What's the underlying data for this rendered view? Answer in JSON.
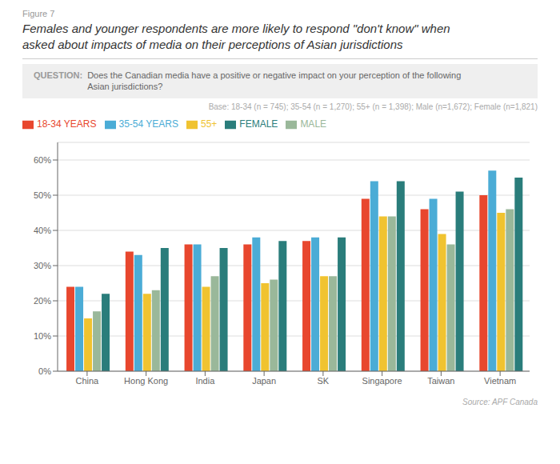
{
  "chart_data": {
    "type": "bar",
    "title": "Females and younger respondents are more likely to respond \"don't know\" when\nasked about impacts of media on their perceptions of Asian jurisdictions",
    "annotations": [
      "Figure 7",
      "QUESTION:",
      "Does the Canadian media have a positive or negative impact on your perception of the following\nAsian jurisdictions?",
      "Base: 18-34 (n = 745); 35-54 (n = 1,270); 55+ (n = 1,398); Male (n=1,672); Female (n=1,821)",
      "Source: APF Canada"
    ],
    "categories": [
      "China",
      "Hong Kong",
      "India",
      "Japan",
      "SK",
      "Singapore",
      "Taiwan",
      "Vietnam"
    ],
    "series": [
      {
        "name": "18-34 YEARS",
        "color": "#e8472e",
        "values": [
          0.24,
          0.34,
          0.36,
          0.36,
          0.37,
          0.49,
          0.46,
          0.5
        ]
      },
      {
        "name": "35-54 YEARS",
        "color": "#4bacd6",
        "values": [
          0.24,
          0.33,
          0.36,
          0.38,
          0.38,
          0.54,
          0.49,
          0.57
        ]
      },
      {
        "name": "55+",
        "color": "#f0c330",
        "values": [
          0.15,
          0.22,
          0.24,
          0.25,
          0.27,
          0.44,
          0.39,
          0.45
        ]
      },
      {
        "name": "MALE",
        "color": "#9ab89a",
        "values": [
          0.17,
          0.23,
          0.27,
          0.26,
          0.27,
          0.44,
          0.36,
          0.46
        ]
      },
      {
        "name": "FEMALE",
        "color": "#2a7d7b",
        "values": [
          0.22,
          0.35,
          0.35,
          0.37,
          0.38,
          0.54,
          0.51,
          0.55
        ]
      }
    ],
    "ylim": [
      0,
      0.65
    ],
    "yticks": [
      {
        "value": 0,
        "label": "0%"
      },
      {
        "value": 0.1,
        "label": "10%"
      },
      {
        "value": 0.2,
        "label": "20%"
      },
      {
        "value": 0.3,
        "label": "30%"
      },
      {
        "value": 0.4,
        "label": "40%"
      },
      {
        "value": 0.5,
        "label": "50%"
      },
      {
        "value": 0.6,
        "label": "60%"
      }
    ],
    "grid": true,
    "legend": "top"
  }
}
